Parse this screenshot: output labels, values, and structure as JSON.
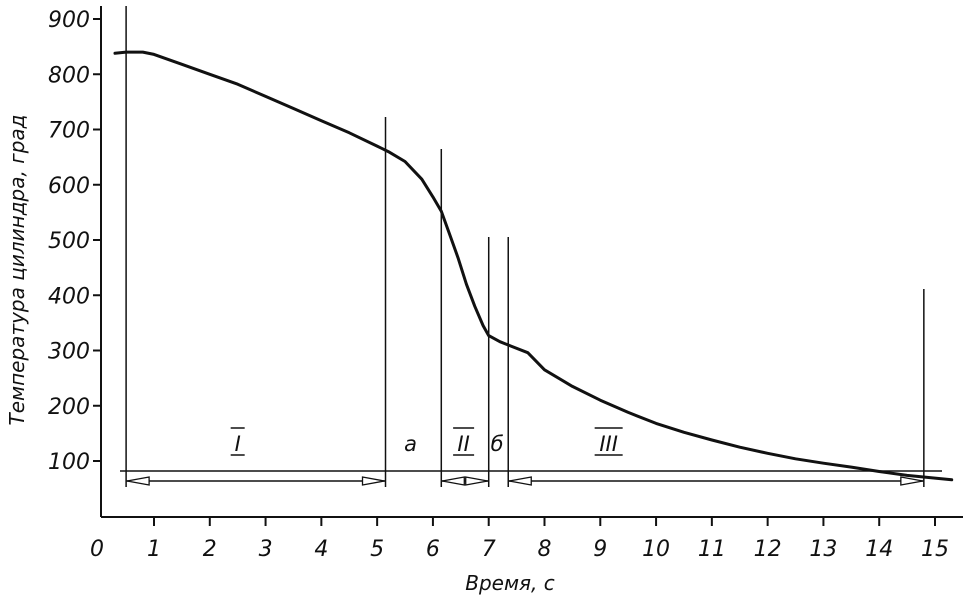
{
  "chart_data": {
    "type": "line",
    "title": "",
    "xlabel": "Время, с",
    "ylabel": "Температура цилиндра, град",
    "xlim": [
      0,
      15.3
    ],
    "ylim": [
      40,
      920
    ],
    "x_ticks": [
      "0",
      "1",
      "2",
      "3",
      "4",
      "5",
      "6",
      "7",
      "8",
      "9",
      "10",
      "11",
      "12",
      "13",
      "14",
      "15"
    ],
    "y_ticks": [
      "100",
      "200",
      "300",
      "400",
      "500",
      "600",
      "700",
      "800",
      "900"
    ],
    "grid": false,
    "series": [
      {
        "name": "",
        "color": "#111111",
        "x": [
          0.3,
          0.5,
          0.8,
          1.0,
          1.5,
          2.0,
          2.5,
          3.0,
          3.5,
          4.0,
          4.5,
          5.0,
          5.2,
          5.5,
          5.8,
          6.0,
          6.15,
          6.3,
          6.45,
          6.6,
          6.75,
          6.9,
          7.0,
          7.2,
          7.4,
          7.7,
          8.0,
          8.5,
          9.0,
          9.5,
          10.0,
          10.5,
          11.0,
          11.5,
          12.0,
          12.5,
          13.0,
          13.5,
          14.0,
          14.5,
          15.0,
          15.3
        ],
        "y": [
          838,
          840,
          840,
          836,
          818,
          800,
          782,
          760,
          738,
          716,
          694,
          670,
          660,
          642,
          610,
          578,
          552,
          510,
          468,
          420,
          380,
          345,
          327,
          316,
          308,
          296,
          265,
          235,
          210,
          188,
          168,
          152,
          138,
          125,
          114,
          104,
          96,
          89,
          81,
          74,
          69,
          66
        ]
      }
    ],
    "boundaries": [
      0.5,
      5.15,
      6.15,
      7.0,
      7.35,
      14.8
    ],
    "zones": [
      {
        "label": "I",
        "overline": true,
        "x": 2.5,
        "arrow": [
          0.5,
          5.15
        ]
      },
      {
        "label": "а",
        "overline": false,
        "x": 5.6,
        "arrow": null
      },
      {
        "label": "II",
        "overline": true,
        "x": 6.55,
        "arrow": [
          6.15,
          7.0
        ]
      },
      {
        "label": "б",
        "overline": false,
        "x": 7.15,
        "arrow": null
      },
      {
        "label": "III",
        "overline": true,
        "x": 9.15,
        "arrow": [
          7.35,
          14.8
        ]
      }
    ],
    "reference_line_y": 80
  }
}
